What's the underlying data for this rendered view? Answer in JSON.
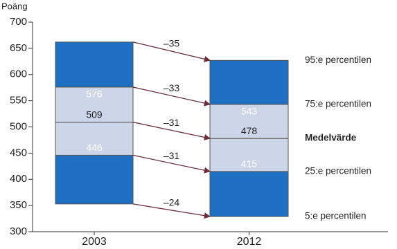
{
  "chart_data": {
    "type": "percentile-bar",
    "y_label": "Poäng",
    "categories": [
      "2003",
      "2012"
    ],
    "series": [
      {
        "name": "5:e percentilen",
        "values": [
          353,
          329
        ],
        "label_position": "below"
      },
      {
        "name": "25:e percentilen",
        "values": [
          446,
          415
        ],
        "label_position": "above"
      },
      {
        "name": "Medelvärde",
        "values": [
          509,
          478
        ],
        "label_position": "above"
      },
      {
        "name": "75:e percentilen",
        "values": [
          576,
          543
        ],
        "label_position": "below"
      },
      {
        "name": "95:e percentilen",
        "values": [
          662,
          627
        ],
        "label_position": "above"
      }
    ],
    "changes": [
      -24,
      -31,
      -31,
      -33,
      -35
    ],
    "change_labels": [
      "–24",
      "–31",
      "–31",
      "–33",
      "–35"
    ],
    "band_colors": [
      "#1f6fc2",
      "#cdd6e8",
      "#cdd6e8",
      "#1f6fc2"
    ],
    "ylim": [
      300,
      700
    ],
    "yticks": [
      300,
      350,
      400,
      450,
      500,
      550,
      600,
      650,
      700
    ]
  }
}
